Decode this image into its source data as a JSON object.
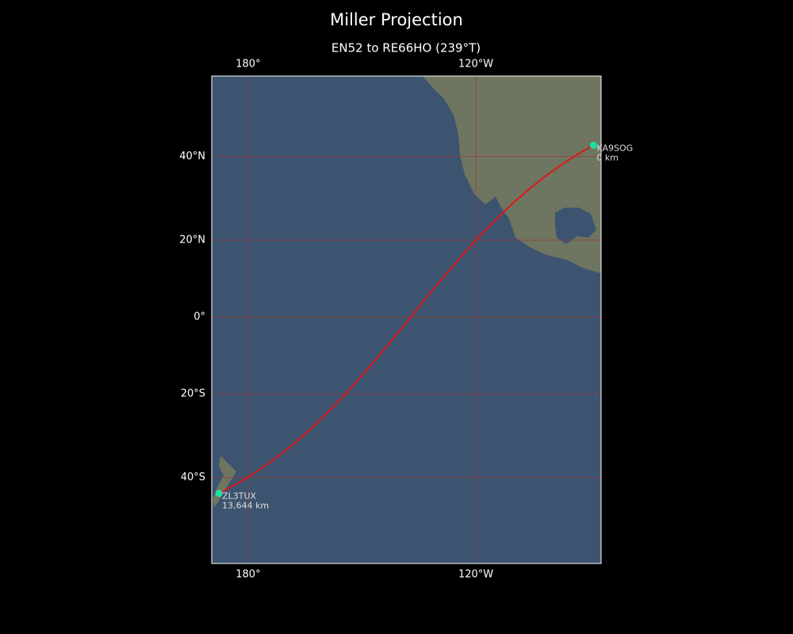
{
  "title": "Miller Projection",
  "subtitle": "EN52 to RE66HO (239°T)",
  "map": {
    "xlim": [
      170.4,
      -87
    ],
    "ylim": [
      -57.5,
      56.5
    ],
    "xticks": [
      {
        "value": 180,
        "label": "180°"
      },
      {
        "value": -120,
        "label": "120°W"
      }
    ],
    "yticks": [
      {
        "value": 40,
        "label": "40°N"
      },
      {
        "value": 20,
        "label": "20°N"
      },
      {
        "value": 0,
        "label": "0°"
      },
      {
        "value": -20,
        "label": "20°S"
      },
      {
        "value": -40,
        "label": "40°S"
      }
    ],
    "grid_color": "#b03030",
    "path_color": "#e01818",
    "point_color": "#1de0a0",
    "points": [
      {
        "name": "KA9SOG",
        "distance": "0 km",
        "lat": 42.5,
        "lon": -89
      },
      {
        "name": "ZL3TUX",
        "distance": "13,644 km",
        "lat": -43.5,
        "lon": 172.3
      }
    ]
  }
}
